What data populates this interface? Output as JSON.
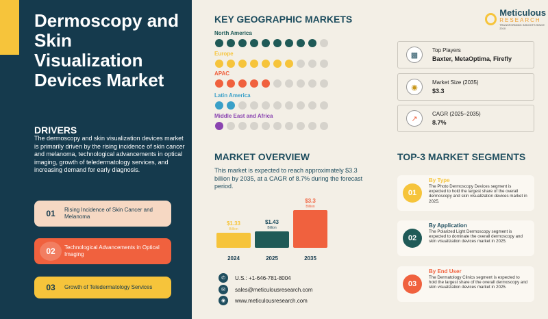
{
  "title": "Dermoscopy and Skin Visualization Devices Market",
  "drivers": {
    "heading": "DRIVERS",
    "description": "The dermoscopy and skin visualization devices market is primarily driven by the rising incidence of skin cancer and melanoma, technological advancements in optical imaging, growth of teledermatology services, and increasing demand for early diagnosis.",
    "items": [
      {
        "num": "01",
        "label": "Rising Incidence of Skin Cancer and Melanoma"
      },
      {
        "num": "02",
        "label": "Technological Advancements in Optical Imaging"
      },
      {
        "num": "03",
        "label": "Growth of Teledermatology Services"
      }
    ]
  },
  "geo": {
    "heading": "KEY GEOGRAPHIC MARKETS",
    "regions": [
      {
        "name": "North America",
        "filled": 9,
        "total": 10,
        "color": "#1f5a57"
      },
      {
        "name": "Europe",
        "filled": 7,
        "total": 10,
        "color": "#f6c43b"
      },
      {
        "name": "APAC",
        "filled": 5,
        "total": 10,
        "color": "#f0613e"
      },
      {
        "name": "Latin America",
        "filled": 2,
        "total": 10,
        "color": "#3aa0c8"
      },
      {
        "name": "Middle East and Africa",
        "filled": 1,
        "total": 10,
        "color": "#8a44b0"
      }
    ]
  },
  "logo": {
    "name": "Meticulous",
    "sub": "RESEARCH",
    "tagline": "TRANSFORMING INSIGHTS SINCE 2010"
  },
  "stats": [
    {
      "label": "Top Players",
      "value": "Baxter, MetaOptima, Firefly",
      "icon": "bar-chart-icon"
    },
    {
      "label": "Market Size (2035)",
      "value": "$3.3",
      "icon": "money-bag-icon"
    },
    {
      "label": "CAGR (2025–2035)",
      "value": "8.7%",
      "icon": "growth-chart-icon"
    }
  ],
  "overview": {
    "heading": "MARKET OVERVIEW",
    "text": "This market is expected to reach approximately $3.3 billion by 2035, at a CAGR of 8.7% during the forecast period."
  },
  "chart_data": {
    "type": "bar",
    "categories": [
      "2024",
      "2025",
      "2035"
    ],
    "values": [
      1.33,
      1.43,
      3.3
    ],
    "labels": [
      "$1.33",
      "$1.43",
      "$3.3"
    ],
    "unit": "Billion",
    "colors": [
      "#f6c43b",
      "#1f5a57",
      "#f0613e"
    ],
    "label_colors": [
      "#f6c43b",
      "#1f4e5f",
      "#f0613e"
    ]
  },
  "contact": {
    "phone": "U.S.: +1-646-781-8004",
    "email": "sales@meticulousresearch.com",
    "web": "www.meticulousresearch.com"
  },
  "segments": {
    "heading": "TOP-3 MARKET SEGMENTS",
    "items": [
      {
        "num": "01",
        "title": "By Type",
        "desc": "The Photo Dermoscopy Devices segment is expected to hold the largest share of the overall dermoscopy and skin visualization devices market in 2025.",
        "color": "#f6c43b"
      },
      {
        "num": "02",
        "title": "By Application",
        "desc": "The Polarized Light Dermoscopy segment is expected to dominate the overall dermoscopy and skin visualization devices market in 2025.",
        "color": "#1f5a57"
      },
      {
        "num": "03",
        "title": "By End User",
        "desc": "The Dermatology Clinics segment is expected to hold the largest share of the overall dermoscopy and skin visualization devices market in 2025.",
        "color": "#f0613e"
      }
    ]
  }
}
